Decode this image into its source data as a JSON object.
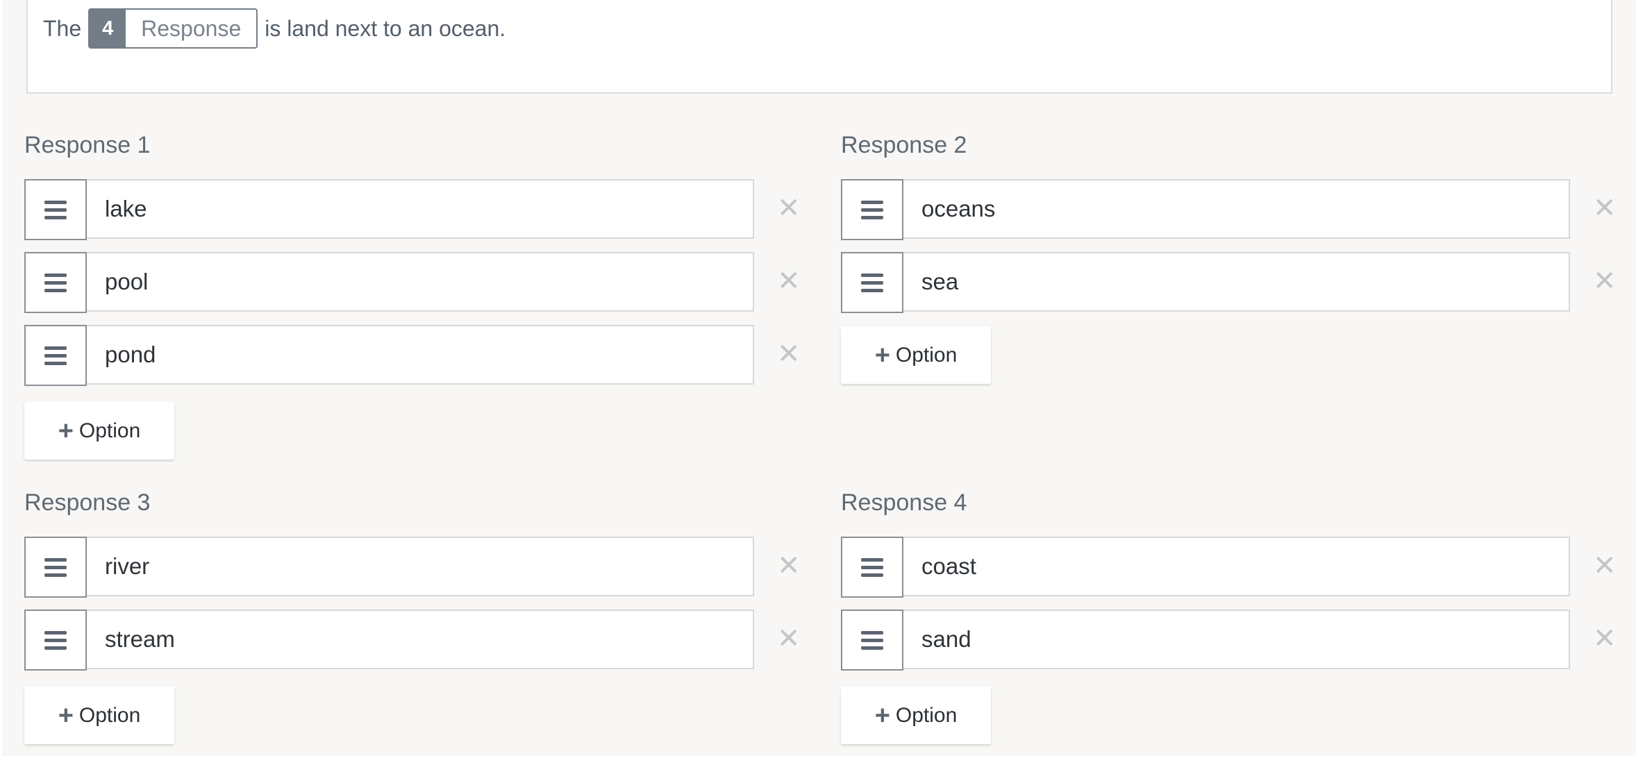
{
  "stem": {
    "before": "The",
    "badge_number": "4",
    "badge_label": "Response",
    "after": "is land next to an ocean."
  },
  "responses": [
    {
      "label": "Response 1",
      "options": [
        "lake",
        "pool",
        "pond"
      ]
    },
    {
      "label": "Response 2",
      "options": [
        "oceans",
        "sea"
      ]
    },
    {
      "label": "Response 3",
      "options": [
        "river",
        "stream"
      ]
    },
    {
      "label": "Response 4",
      "options": [
        "coast",
        "sand"
      ]
    }
  ],
  "add_option_label": "Option",
  "icons": {
    "handle": "drag-handle-icon",
    "remove": "close-icon",
    "add": "plus-icon"
  },
  "colors": {
    "background": "#f8f7f5",
    "badge": "#737d88",
    "remove": "#c2c6ca"
  }
}
